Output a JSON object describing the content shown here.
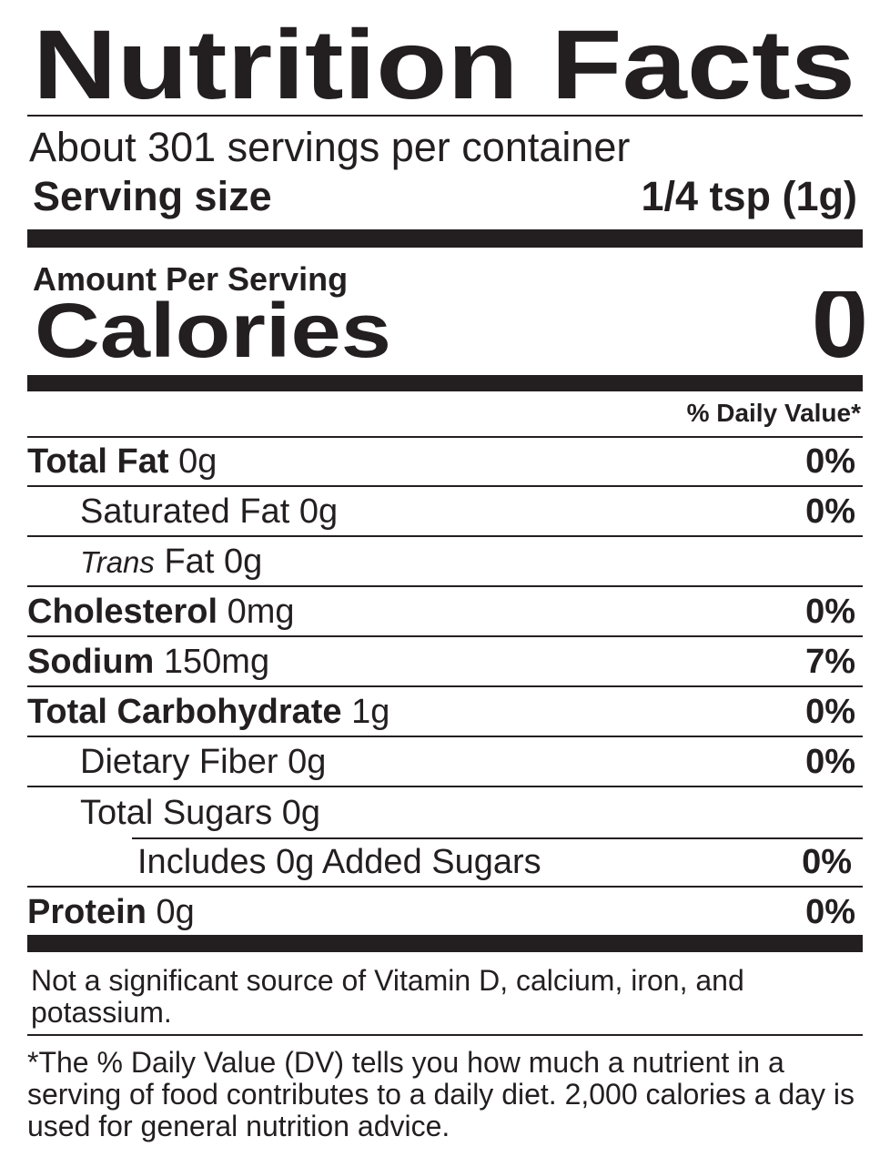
{
  "title": "Nutrition Facts",
  "servings": "About 301 servings per container",
  "serving_size": {
    "label": "Serving size",
    "value": "1/4 tsp (1g)"
  },
  "amount_per_serving": "Amount Per Serving",
  "calories": {
    "label": "Calories",
    "value": "0"
  },
  "daily_value_header": "% Daily Value*",
  "nutrients": [
    {
      "name": "Total Fat",
      "amount": "0g",
      "dv": "0%"
    },
    {
      "name": "Saturated Fat",
      "amount": "0g",
      "dv": "0%"
    },
    {
      "name_italic": "Trans",
      "name": "Fat",
      "amount": "0g"
    },
    {
      "name": "Cholesterol",
      "amount": "0mg",
      "dv": "0%"
    },
    {
      "name": "Sodium",
      "amount": "150mg",
      "dv": "7%"
    },
    {
      "name": "Total Carbohydrate",
      "amount": "1g",
      "dv": "0%"
    },
    {
      "name": "Dietary Fiber",
      "amount": "0g",
      "dv": "0%"
    },
    {
      "name": "Total Sugars",
      "amount": "0g"
    },
    {
      "name": "Includes 0g Added Sugars",
      "dv": "0%"
    },
    {
      "name": "Protein",
      "amount": "0g",
      "dv": "0%"
    }
  ],
  "footnote_vitamins": "Not a significant source of Vitamin D, calcium, iron, and potassium.",
  "footnote_dv": "*The % Daily Value (DV) tells you how much a nutrient in a serving of food contributes to a daily diet. 2,000 calories a day is used for general nutrition advice."
}
